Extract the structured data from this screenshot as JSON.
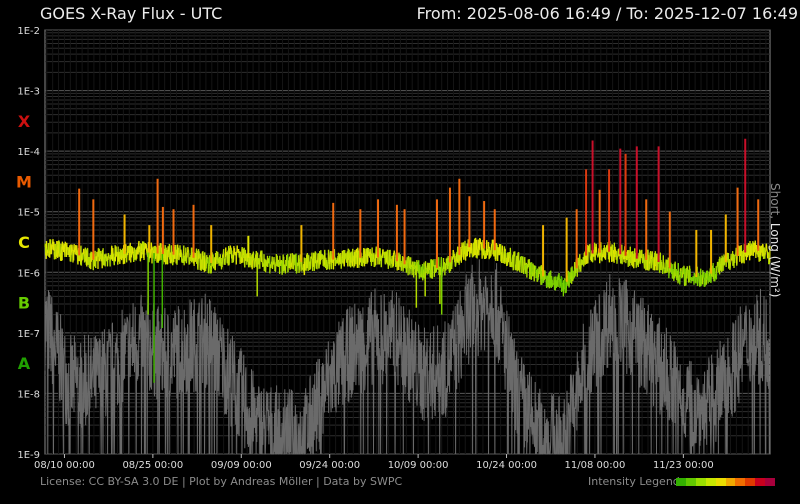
{
  "header": {
    "title": "GOES X-Ray Flux - UTC",
    "range": "From: 2025-08-06 16:49  /  To: 2025-12-07 16:49"
  },
  "footer": {
    "license": "License: CC BY-SA 3.0 DE | Plot by Andreas Möller | Data by SWPC",
    "legend_label": "Intensity Legend",
    "legend_colors": [
      "#33b000",
      "#62c800",
      "#9ade00",
      "#c8e600",
      "#eadc00",
      "#f0a800",
      "#f06e00",
      "#e03a00",
      "#c8001e",
      "#a8003c"
    ]
  },
  "chart_data": {
    "type": "line",
    "title": "GOES X-Ray Flux - UTC",
    "ylabel_short": "Short",
    "ylabel_sep": ", ",
    "ylabel_long": "Long (W/m²)",
    "y_scale": "log",
    "ylim": [
      1e-09,
      0.01
    ],
    "y_ticks": [
      "1E-2",
      "1E-3",
      "1E-4",
      "1E-5",
      "1E-6",
      "1E-7",
      "1E-8",
      "1E-9"
    ],
    "flare_classes": [
      {
        "label": "X",
        "level": 0.0001,
        "color": "#cc1010"
      },
      {
        "label": "M",
        "level": 1e-05,
        "color": "#e85a00"
      },
      {
        "label": "C",
        "level": 1e-06,
        "color": "#e6e600"
      },
      {
        "label": "B",
        "level": 1e-07,
        "color": "#66cc00"
      },
      {
        "label": "A",
        "level": 1e-08,
        "color": "#20a000"
      }
    ],
    "x_range": [
      "2025-08-06 16:49",
      "2025-12-07 16:49"
    ],
    "x_ticks": [
      "08/10 00:00",
      "08/25 00:00",
      "09/09 00:00",
      "09/24 00:00",
      "10/09 00:00",
      "10/24 00:00",
      "11/08 00:00",
      "11/23 00:00"
    ],
    "x_tick_days": [
      3.3,
      18.3,
      33.3,
      48.3,
      63.3,
      78.3,
      93.3,
      108.3
    ],
    "total_days": 123,
    "grid": true,
    "series": [
      {
        "name": "Long",
        "color": "colored-by-class",
        "baseline_days": [
          0,
          4,
          8,
          12,
          16,
          20,
          24,
          28,
          32,
          36,
          40,
          44,
          48,
          52,
          56,
          60,
          64,
          68,
          72,
          76,
          80,
          84,
          88,
          92,
          96,
          100,
          104,
          108,
          112,
          116,
          120,
          123
        ],
        "baseline": [
          2.5e-06,
          2.2e-06,
          1.6e-06,
          1.9e-06,
          2.2e-06,
          2e-06,
          1.9e-06,
          1.4e-06,
          2e-06,
          1.6e-06,
          1.3e-06,
          1.5e-06,
          1.6e-06,
          1.7e-06,
          1.8e-06,
          1.5e-06,
          1e-06,
          1.3e-06,
          2.6e-06,
          2.4e-06,
          1.5e-06,
          9e-07,
          6e-07,
          2e-06,
          2.2e-06,
          1.7e-06,
          1.5e-06,
          9e-07,
          8e-07,
          1.6e-06,
          2.4e-06,
          2e-06
        ],
        "peaks": [
          {
            "day": 5.8,
            "value": 2.4e-05
          },
          {
            "day": 8.2,
            "value": 1.6e-05
          },
          {
            "day": 13.5,
            "value": 9e-06
          },
          {
            "day": 17.7,
            "value": 6e-06
          },
          {
            "day": 19.1,
            "value": 3.5e-05
          },
          {
            "day": 20.0,
            "value": 1.2e-05
          },
          {
            "day": 21.8,
            "value": 1.1e-05
          },
          {
            "day": 25.2,
            "value": 1.3e-05
          },
          {
            "day": 28.2,
            "value": 6e-06
          },
          {
            "day": 34.5,
            "value": 4e-06
          },
          {
            "day": 43.5,
            "value": 6e-06
          },
          {
            "day": 48.9,
            "value": 1.4e-05
          },
          {
            "day": 53.5,
            "value": 1.1e-05
          },
          {
            "day": 56.5,
            "value": 1.6e-05
          },
          {
            "day": 59.7,
            "value": 1.3e-05
          },
          {
            "day": 61.0,
            "value": 1.1e-05
          },
          {
            "day": 66.5,
            "value": 1.6e-05
          },
          {
            "day": 68.7,
            "value": 2.5e-05
          },
          {
            "day": 70.3,
            "value": 3.5e-05
          },
          {
            "day": 72.0,
            "value": 1.8e-05
          },
          {
            "day": 74.5,
            "value": 1.5e-05
          },
          {
            "day": 76.3,
            "value": 1.1e-05
          },
          {
            "day": 84.5,
            "value": 6e-06
          },
          {
            "day": 88.5,
            "value": 8e-06
          },
          {
            "day": 90.2,
            "value": 1.1e-05
          },
          {
            "day": 91.8,
            "value": 5e-05
          },
          {
            "day": 92.9,
            "value": 0.00015
          },
          {
            "day": 94.1,
            "value": 2.3e-05
          },
          {
            "day": 95.7,
            "value": 5e-05
          },
          {
            "day": 97.6,
            "value": 0.00011
          },
          {
            "day": 98.5,
            "value": 9e-05
          },
          {
            "day": 100.4,
            "value": 0.00012
          },
          {
            "day": 102.0,
            "value": 1.6e-05
          },
          {
            "day": 104.1,
            "value": 0.00012
          },
          {
            "day": 106.0,
            "value": 1e-05
          },
          {
            "day": 110.5,
            "value": 5e-06
          },
          {
            "day": 113.0,
            "value": 5e-06
          },
          {
            "day": 115.5,
            "value": 9e-06
          },
          {
            "day": 117.5,
            "value": 2.5e-05
          },
          {
            "day": 118.8,
            "value": 0.00016
          },
          {
            "day": 121.0,
            "value": 1.6e-05
          }
        ],
        "dips": [
          {
            "day": 17.5,
            "value": 2e-07
          },
          {
            "day": 18.5,
            "value": 1.5e-08
          },
          {
            "day": 19.9,
            "value": 1.2e-07
          },
          {
            "day": 36.0,
            "value": 4e-07
          },
          {
            "day": 44.0,
            "value": 9e-07
          },
          {
            "day": 63.0,
            "value": 2.6e-07
          },
          {
            "day": 64.5,
            "value": 4e-07
          },
          {
            "day": 67.0,
            "value": 3e-07
          },
          {
            "day": 67.3,
            "value": 2e-07
          }
        ]
      },
      {
        "name": "Short",
        "color": "#666666",
        "baseline_days": [
          0,
          4,
          8,
          12,
          16,
          20,
          24,
          28,
          32,
          36,
          40,
          44,
          48,
          52,
          56,
          60,
          64,
          68,
          72,
          76,
          80,
          84,
          88,
          92,
          96,
          100,
          104,
          108,
          112,
          116,
          120,
          123
        ],
        "baseline": [
          1.5e-07,
          1.5e-08,
          1.5e-08,
          3e-08,
          8e-08,
          4e-08,
          6e-08,
          8e-08,
          1.5e-08,
          3e-09,
          2e-09,
          2e-09,
          1.5e-08,
          5e-08,
          9e-08,
          8e-08,
          2e-08,
          2.5e-08,
          2e-07,
          4e-07,
          1e-08,
          2e-09,
          1.5e-09,
          4e-08,
          2e-07,
          1e-07,
          3e-08,
          1e-08,
          5e-09,
          2e-08,
          1e-07,
          7e-08
        ]
      }
    ]
  }
}
